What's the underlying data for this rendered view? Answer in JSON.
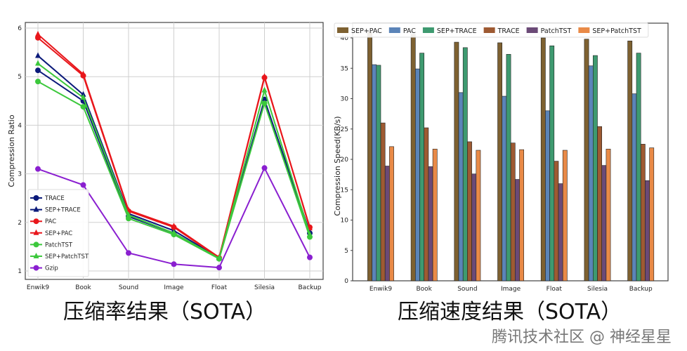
{
  "chart_data": [
    {
      "type": "line",
      "title": "",
      "xlabel": "",
      "ylabel": "Compression Ratio",
      "categories": [
        "Enwik9",
        "Book",
        "Sound",
        "Image",
        "Float",
        "Silesia",
        "Backup"
      ],
      "yticks": [
        1,
        2,
        3,
        4,
        5,
        6
      ],
      "ylim": [
        0.82,
        6.1
      ],
      "grid": true,
      "legend": "bottom-left",
      "series": [
        {
          "name": "TRACE",
          "marker": "circle",
          "color": "#0b1a7a",
          "values": [
            5.13,
            4.5,
            2.12,
            1.78,
            1.26,
            4.53,
            1.78
          ]
        },
        {
          "name": "SEP+TRACE",
          "marker": "triangle",
          "color": "#0b1a7a",
          "values": [
            5.43,
            4.63,
            2.18,
            1.83,
            1.27,
            4.5,
            1.8
          ]
        },
        {
          "name": "PAC",
          "marker": "circle",
          "color": "#e8161b",
          "values": [
            5.8,
            5.02,
            2.23,
            1.9,
            1.27,
            4.98,
            1.9
          ]
        },
        {
          "name": "SEP+PAC",
          "marker": "triangle",
          "color": "#e8161b",
          "values": [
            5.87,
            5.05,
            2.25,
            1.92,
            1.28,
            5.0,
            1.88
          ]
        },
        {
          "name": "PatchTST",
          "marker": "circle",
          "color": "#3cc83c",
          "values": [
            4.9,
            4.38,
            2.08,
            1.75,
            1.25,
            4.45,
            1.7
          ]
        },
        {
          "name": "SEP+PatchTST",
          "marker": "triangle",
          "color": "#3cc83c",
          "values": [
            5.27,
            4.57,
            2.15,
            1.78,
            1.26,
            4.72,
            1.75
          ]
        },
        {
          "name": "Gzip",
          "marker": "circle",
          "color": "#8a1fd0",
          "values": [
            3.1,
            2.77,
            1.37,
            1.14,
            1.07,
            3.12,
            1.28
          ]
        }
      ]
    },
    {
      "type": "bar",
      "title": "",
      "xlabel": "",
      "ylabel": "Compression Speed(KB/s)",
      "categories": [
        "Enwik9",
        "Book",
        "Sound",
        "Image",
        "Float",
        "Silesia",
        "Backup"
      ],
      "yticks": [
        0,
        5,
        10,
        15,
        20,
        25,
        30,
        35,
        40
      ],
      "ylim": [
        0,
        42
      ],
      "grid": false,
      "legend": "top",
      "series": [
        {
          "name": "SEP+PAC",
          "color": "#7e6131",
          "values": [
            41.0,
            40.6,
            39.3,
            39.2,
            40.0,
            39.8,
            39.5
          ]
        },
        {
          "name": "PAC",
          "color": "#5b84b8",
          "values": [
            35.6,
            34.9,
            31.0,
            30.4,
            28.0,
            35.4,
            30.8
          ]
        },
        {
          "name": "SEP+TRACE",
          "color": "#3e9a70",
          "values": [
            35.5,
            37.5,
            38.4,
            37.3,
            38.7,
            37.1,
            37.5
          ]
        },
        {
          "name": "TRACE",
          "color": "#9e5a32",
          "values": [
            26.0,
            25.2,
            22.9,
            22.7,
            19.7,
            25.4,
            22.5
          ]
        },
        {
          "name": "PatchTST",
          "color": "#6b4a77",
          "values": [
            18.9,
            18.8,
            17.6,
            16.7,
            16.0,
            19.0,
            16.5
          ]
        },
        {
          "name": "SEP+PatchTST",
          "color": "#e98a47",
          "values": [
            22.1,
            21.7,
            21.5,
            21.6,
            21.5,
            21.7,
            21.9
          ]
        }
      ]
    }
  ],
  "captions": {
    "left": "压缩率结果（SOTA）",
    "right": "压缩速度结果（SOTA）"
  },
  "watermark": "腾讯技术社区 @ 神经星星"
}
